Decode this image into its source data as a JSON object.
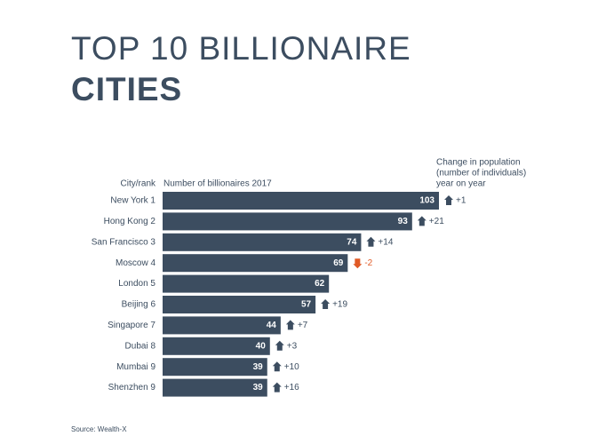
{
  "chart_data": {
    "type": "bar",
    "orientation": "horizontal",
    "title_lines": [
      "TOP 10 BILLIONAIRE",
      "CITIES"
    ],
    "category_header": "City/rank",
    "value_header": "Number of billionaires 2017",
    "change_header": [
      "Change in population",
      "(number of individuals)",
      "year on year"
    ],
    "categories": [
      "New York 1",
      "Hong Kong 2",
      "San Francisco 3",
      "Moscow 4",
      "London 5",
      "Beijing 6",
      "Singapore 7",
      "Dubai 8",
      "Mumbai 9",
      "Shenzhen 9"
    ],
    "values": [
      103,
      93,
      74,
      69,
      62,
      57,
      44,
      40,
      39,
      39
    ],
    "color": "#3c4d60",
    "changes": {
      "values": [
        1,
        21,
        14,
        -2,
        null,
        19,
        7,
        3,
        10,
        16
      ],
      "value_labels": [
        "+1",
        "+21",
        "+14",
        "-2",
        null,
        "+19",
        "+7",
        "+3",
        "+10",
        "+16"
      ],
      "up_color": "#3c4d60",
      "down_color": "#e05a26"
    },
    "source": "Source: Wealth-X"
  }
}
